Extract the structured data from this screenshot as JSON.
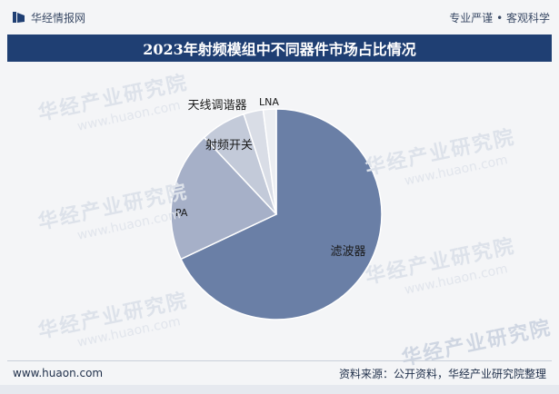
{
  "header": {
    "brand": "华经情报网",
    "tagline": "专业严谨 • 客观科学"
  },
  "title": "2023年射频模组中不同器件市场占比情况",
  "watermark": {
    "text": "华经产业研究院",
    "url": "www.huaon.com"
  },
  "footer": {
    "website": "www.huaon.com",
    "source": "资料来源：公开资料，华经产业研究院整理"
  },
  "colors": {
    "title_bg": "#1f3f73",
    "slices": [
      "#6a7fa6",
      "#a6b0c8",
      "#c3cad9",
      "#d9dde6",
      "#eceef2"
    ]
  },
  "chart_data": {
    "type": "pie",
    "title": "2023年射频模组中不同器件市场占比情况",
    "categories": [
      "滤波器",
      "PA",
      "射频开关",
      "天线调谐器",
      "LNA"
    ],
    "values": [
      68,
      20,
      7,
      3,
      2
    ],
    "legend": "none"
  }
}
